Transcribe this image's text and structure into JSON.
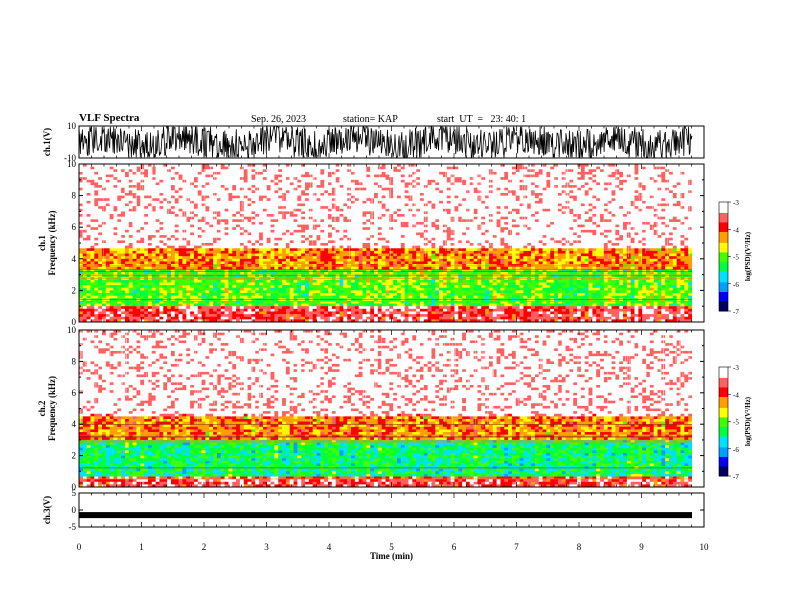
{
  "header": {
    "title": "VLF Spectra",
    "date": "Sep. 26, 2023",
    "station": "station= KAP",
    "start": "start  UT  =   23: 40: 1"
  },
  "chart_data": [
    {
      "type": "line",
      "panel": "ch1-waveform",
      "ylabel": "ch.1(V)",
      "ylim": [
        -10,
        10
      ],
      "yticks": [
        "10",
        "-10"
      ],
      "xlim": [
        0,
        10
      ],
      "description_of_signal": "dense noisy waveform spanning nearly full range"
    },
    {
      "type": "heatmap",
      "panel": "ch1-spectrogram",
      "ylabel": "ch.1\nFrequency  (kHz)",
      "ylim": [
        0,
        10
      ],
      "yticks": [
        "0",
        "2",
        "4",
        "6",
        "8",
        "10"
      ],
      "xlim": [
        0,
        9.8
      ],
      "bands": [
        {
          "from": 0,
          "to": 1.0,
          "level": -3.6
        },
        {
          "from": 1.0,
          "to": 3.4,
          "level": -5.0
        },
        {
          "from": 3.4,
          "to": 4.6,
          "level": -4.2
        },
        {
          "from": 4.6,
          "to": 10,
          "level": -3.2
        }
      ]
    },
    {
      "type": "heatmap",
      "panel": "ch2-spectrogram",
      "ylabel": "ch.2\nFrequency  (kHz)",
      "ylim": [
        0,
        10
      ],
      "yticks": [
        "0",
        "2",
        "4",
        "6",
        "8",
        "10"
      ],
      "xlim": [
        0,
        9.8
      ],
      "bands": [
        {
          "from": 0,
          "to": 0.6,
          "level": -3.6
        },
        {
          "from": 0.6,
          "to": 3.0,
          "level": -5.4
        },
        {
          "from": 3.0,
          "to": 4.5,
          "level": -4.2
        },
        {
          "from": 4.5,
          "to": 10,
          "level": -3.2
        }
      ]
    },
    {
      "type": "line",
      "panel": "ch3-waveform",
      "ylabel": "ch.3(V)",
      "ylim": [
        -5,
        5
      ],
      "yticks": [
        "5",
        "0",
        "-5"
      ],
      "xlim": [
        0,
        10
      ],
      "values_constant": -1.5,
      "xlabel": "Time  (min)",
      "xticks": [
        "0",
        "1",
        "2",
        "3",
        "4",
        "5",
        "6",
        "7",
        "8",
        "9",
        "10"
      ]
    }
  ],
  "colorbar": {
    "label": "log(PSD)(V²/Hz)",
    "ticks": [
      "-3",
      "-4",
      "-5",
      "-6",
      "-7"
    ],
    "range": [
      -7,
      -3
    ],
    "colors": [
      "#000060",
      "#0000ff",
      "#00a0ff",
      "#00e0ff",
      "#00ff40",
      "#40ff00",
      "#ffff00",
      "#ffa000",
      "#ff0000",
      "#ff6060",
      "#ffffff"
    ]
  }
}
